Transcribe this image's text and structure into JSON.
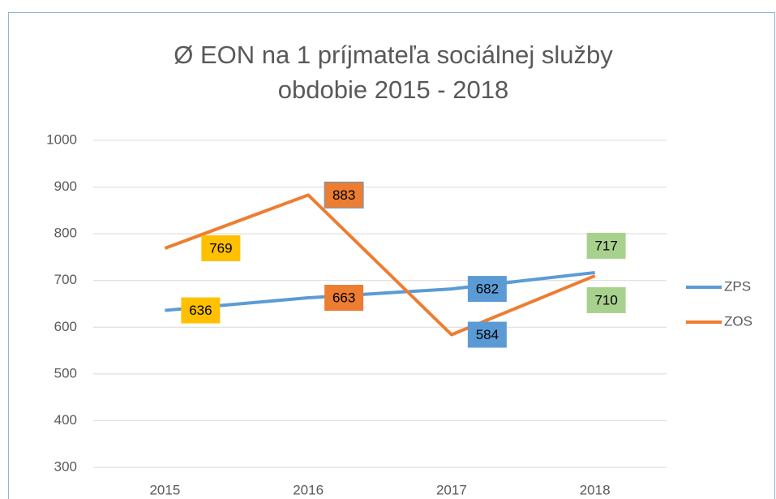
{
  "chart_data": {
    "type": "line",
    "title": "Ø EON na 1 príjmateľa sociálnej služby",
    "subtitle": "obdobie 2015 - 2018",
    "categories": [
      "2015",
      "2016",
      "2017",
      "2018"
    ],
    "series": [
      {
        "name": "ZPS",
        "color": "#5b9bd5",
        "values": [
          636,
          663,
          682,
          717
        ]
      },
      {
        "name": "ZOS",
        "color": "#ed7d31",
        "values": [
          769,
          883,
          584,
          710
        ]
      }
    ],
    "label_colors": [
      "#ffc000",
      "#ed7d31",
      "#5b9bd5",
      "#a9d18e"
    ],
    "ylim": [
      300,
      1000
    ],
    "yticks": [
      300,
      400,
      500,
      600,
      700,
      800,
      900,
      1000
    ],
    "grid": true,
    "legend": "right"
  }
}
